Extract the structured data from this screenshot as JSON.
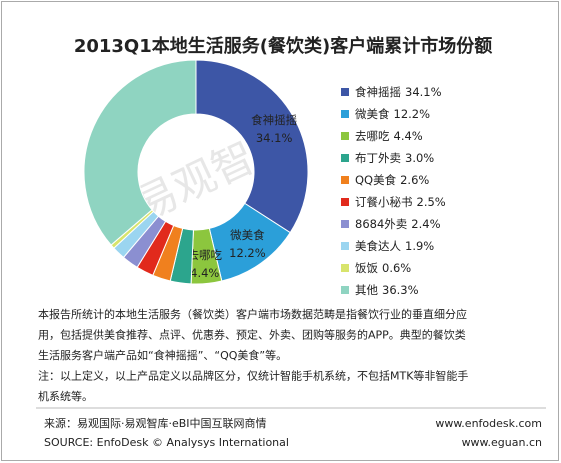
{
  "chart_data": {
    "type": "donut",
    "title": "2013Q1本地生活服务(餐饮类)客户端累计市场份额",
    "watermark": "易观智库",
    "categories": [
      "食神摇摇",
      "微美食",
      "去哪吃",
      "布丁外卖",
      "QQ美食",
      "订餐小秘书",
      "8684外卖",
      "美食达人",
      "饭饭",
      "其他"
    ],
    "values": [
      34.1,
      12.2,
      4.4,
      3.0,
      2.6,
      2.5,
      2.4,
      1.9,
      0.6,
      36.3
    ],
    "value_labels": [
      "34.1%",
      "12.2%",
      "4.4%",
      "3.0%",
      "2.6%",
      "2.5%",
      "2.4%",
      "1.9%",
      "0.6%",
      "36.3%"
    ],
    "colors": [
      "#3d56a6",
      "#2b9fd9",
      "#8cc63e",
      "#2ca58d",
      "#f0801e",
      "#e12a1c",
      "#8b8fd1",
      "#9bd5f0",
      "#d8e46c",
      "#8fd4c1"
    ],
    "legend": "right"
  },
  "notes": [
    "本报告所统计的本地生活服务（餐饮类）客户端市场数据范畴是指餐饮行业的垂直细分应",
    "用，包括提供美食推荐、点评、优惠券、预定、外卖、团购等服务的APP。典型的餐饮类",
    "生活服务客户端产品如“食神摇摇”、“QQ美食”等。",
    "注：以上定义，以上产品定义以品牌区分，仅统计智能手机系统，不包括MTK等非智能手",
    "机系统等。"
  ],
  "source": [
    "来源：易观国际·易观智库·eBI中国互联网商情",
    "SOURCE: EnfoDesk © Analysys International"
  ],
  "websites": [
    "www.enfodesk.com",
    "www.eguan.cn"
  ]
}
